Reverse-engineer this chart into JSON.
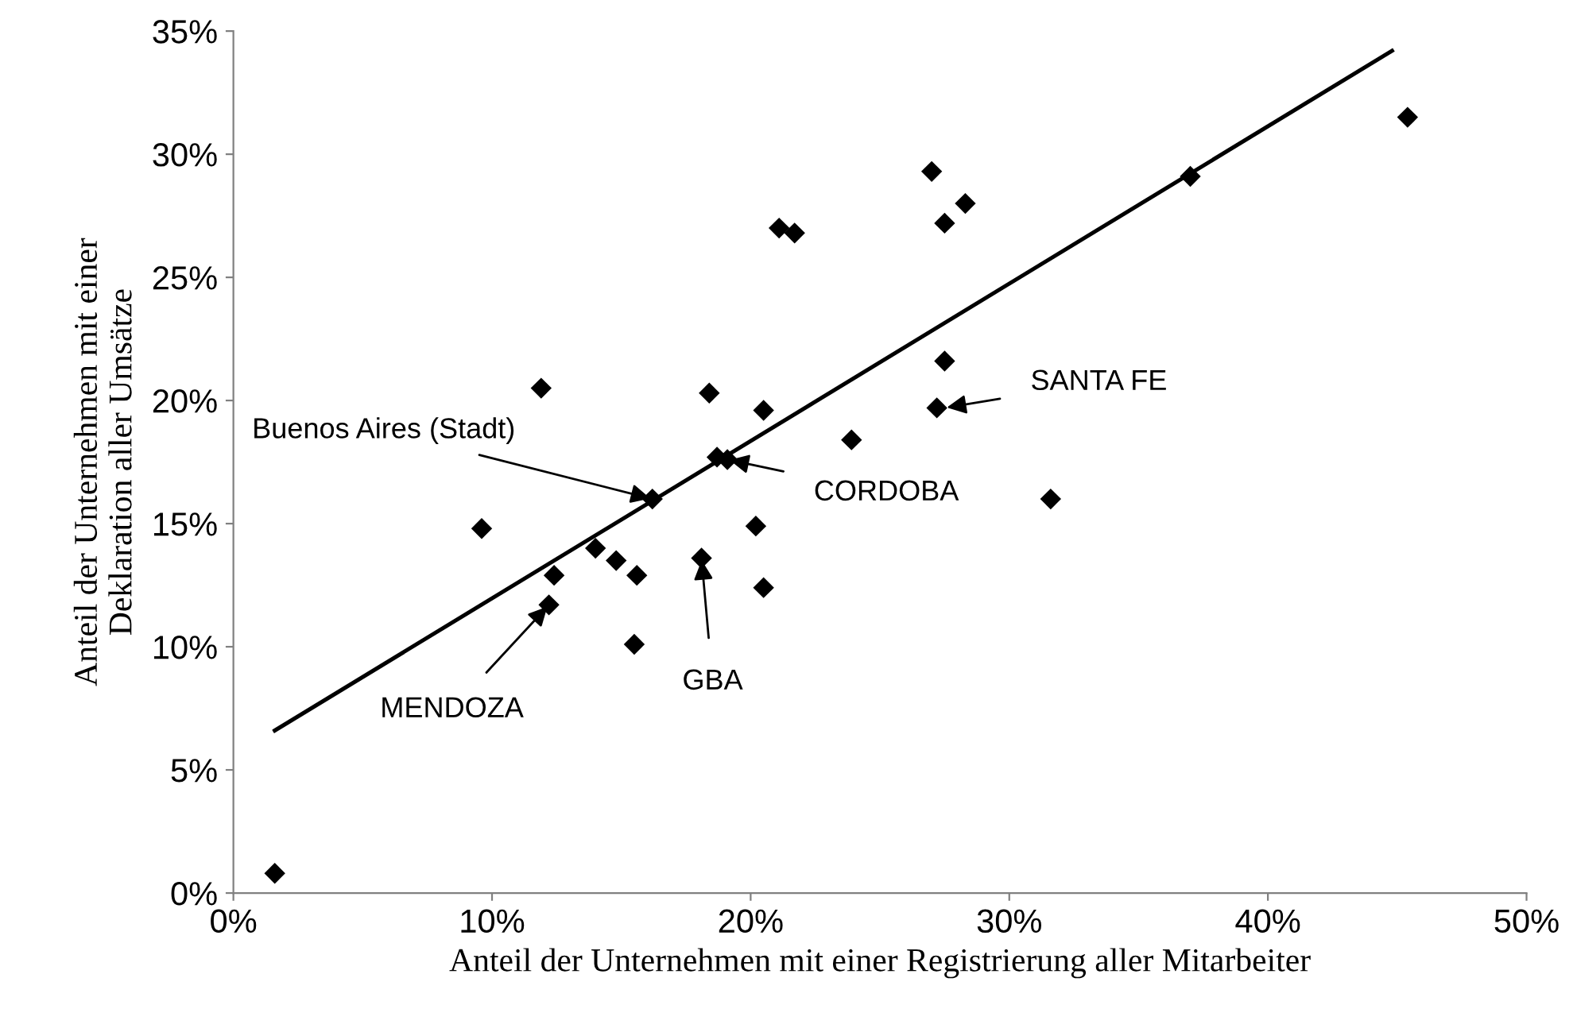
{
  "chart_data": {
    "type": "scatter",
    "xlabel": "Anteil der Unternehmen mit einer Registrierung aller Mitarbeiter",
    "ylabel": "Anteil der Unternehmen mit einer\nDeklaration aller Umsätze",
    "xlim": [
      0,
      50
    ],
    "xticks": [
      {
        "value": 0,
        "label": "0%"
      },
      {
        "value": 10,
        "label": "10%"
      },
      {
        "value": 20,
        "label": "20%"
      },
      {
        "value": 30,
        "label": "30%"
      },
      {
        "value": 40,
        "label": "40%"
      },
      {
        "value": 50,
        "label": "50%"
      }
    ],
    "ylim": [
      0,
      35
    ],
    "yticks": [
      {
        "value": 0,
        "label": "0%"
      },
      {
        "value": 5,
        "label": "5%"
      },
      {
        "value": 10,
        "label": "10%"
      },
      {
        "value": 15,
        "label": "15%"
      },
      {
        "value": 20,
        "label": "20%"
      },
      {
        "value": 25,
        "label": "25%"
      },
      {
        "value": 30,
        "label": "30%"
      },
      {
        "value": 35,
        "label": "35%"
      }
    ],
    "grid": false,
    "legend": false,
    "marker": "diamond",
    "series": [
      {
        "color": "#000000",
        "x": [
          21.1,
          21.7,
          11.9,
          18.4,
          20.5,
          23.9,
          18.7,
          19.1,
          16.2,
          9.6,
          20.2,
          14.0,
          14.8,
          15.6,
          12.4,
          18.1,
          12.2,
          20.5,
          15.5,
          1.6,
          27.0,
          28.3,
          27.5,
          37.0,
          45.4,
          27.5,
          27.2,
          31.6
        ],
        "values": [
          27.0,
          26.8,
          20.5,
          20.3,
          19.6,
          18.4,
          17.7,
          17.6,
          16.0,
          14.8,
          14.9,
          14.0,
          13.5,
          12.9,
          12.9,
          13.6,
          11.7,
          12.4,
          10.1,
          0.8,
          29.3,
          28.0,
          27.2,
          29.1,
          31.5,
          21.6,
          19.7,
          16.0
        ]
      },
      {
        "type": "line",
        "color": "#000000",
        "marker": "none",
        "x": [
          1.6,
          44.8
        ],
        "values": [
          6.6,
          34.2
        ]
      }
    ],
    "annotations": [
      {
        "text": "Buenos Aires (Stadt)",
        "x": 16.2,
        "y": 16.0
      },
      {
        "text": "CORDOBA",
        "x": 19.1,
        "y": 17.6
      },
      {
        "text": "SANTA FE",
        "x": 27.5,
        "y": 19.7
      },
      {
        "text": "GBA",
        "x": 18.1,
        "y": 13.6
      },
      {
        "text": "MENDOZA",
        "x": 12.2,
        "y": 11.7
      }
    ]
  }
}
